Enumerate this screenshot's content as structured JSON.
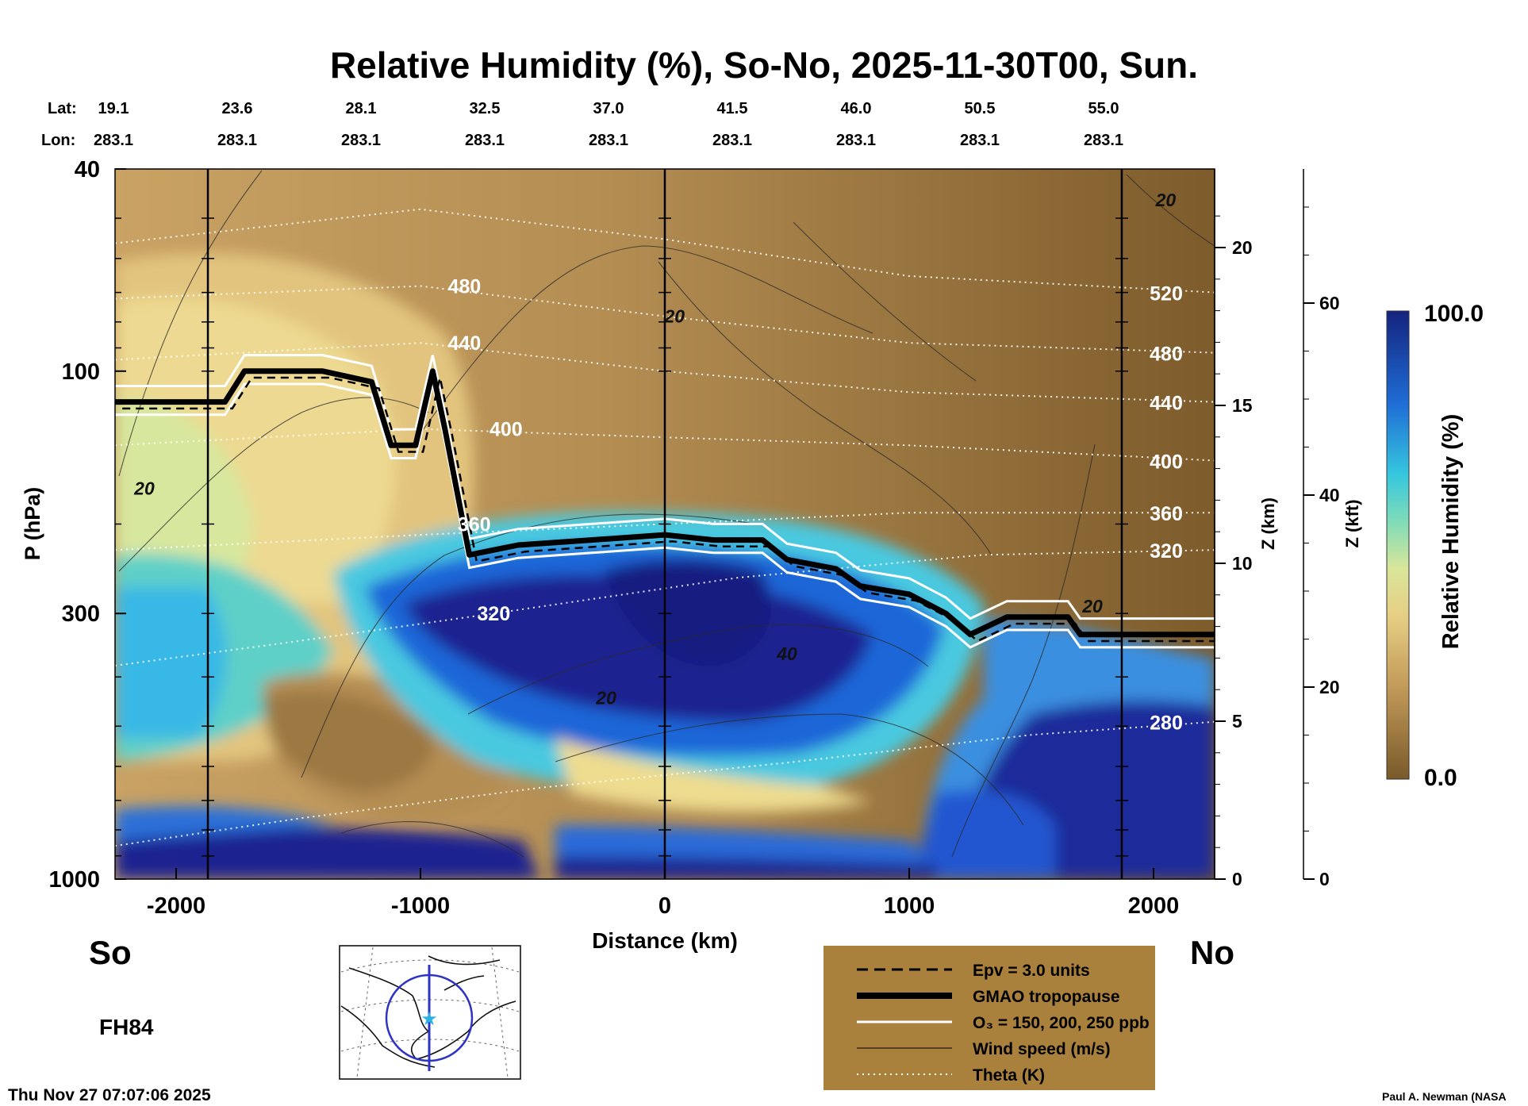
{
  "title": "Relative Humidity (%), So-No, 2025-11-30T00, Sun.",
  "header_rows": {
    "lat_label": "Lat:",
    "lon_label": "Lon:",
    "lat": [
      "19.1",
      "23.6",
      "28.1",
      "32.5",
      "37.0",
      "41.5",
      "46.0",
      "50.5",
      "55.0"
    ],
    "lon": [
      "283.1",
      "283.1",
      "283.1",
      "283.1",
      "283.1",
      "283.1",
      "283.1",
      "283.1",
      "283.1"
    ]
  },
  "left_end": "So",
  "right_end": "No",
  "forecast_hour": "FH84",
  "timestamp": "Thu Nov 27 07:07:06 2025",
  "credit": "Paul A. Newman (NASA",
  "colors": {
    "brown_dark": "#7a5a2a",
    "brown": "#a9824a",
    "tan": "#d8b873",
    "yellow": "#e8d58a",
    "cyan": "#38c8dc",
    "blue": "#1f5fd6",
    "navy": "#1a1f8c",
    "legend_bg": "#a9803c"
  },
  "chart_data": {
    "type": "heatmap",
    "title": "Relative Humidity (%), So-No, 2025-11-30T00, Sun.",
    "xlabel": "Distance (km)",
    "ylabel": "P (hPa)",
    "xlim": [
      -2250,
      2250
    ],
    "ylim": [
      1000,
      40
    ],
    "yscale": "log",
    "x_ticks": [
      -2000,
      -1000,
      0,
      1000,
      2000
    ],
    "x_tick_labels": [
      "-2000",
      "-1000",
      "0",
      "1000",
      "2000"
    ],
    "y_ticks": [
      40,
      100,
      300,
      1000
    ],
    "y_tick_labels": [
      "40",
      "100",
      "300",
      "1000"
    ],
    "z_km": {
      "label": "Z (km)",
      "ticks": [
        0,
        5,
        10,
        15,
        20
      ],
      "tick_labels": [
        "0",
        "5",
        "10",
        "15",
        "20"
      ]
    },
    "z_kft": {
      "label": "Z (kft)",
      "ticks": [
        0,
        20,
        40,
        60
      ],
      "tick_labels": [
        "0",
        "20",
        "40",
        "60"
      ]
    },
    "colorbar": {
      "label": "Relative Humidity (%)",
      "min": 0.0,
      "max": 100.0,
      "min_label": "0.0",
      "max_label": "100.0"
    },
    "vertical_lines_km": [
      -1870,
      0,
      1870
    ],
    "theta_isentropes": [
      {
        "label": "280",
        "points": [
          [
            -2250,
            860
          ],
          [
            -1500,
            760
          ],
          [
            -500,
            660
          ],
          [
            500,
            590
          ],
          [
            1500,
            520
          ],
          [
            2250,
            490
          ]
        ]
      },
      {
        "label": "320",
        "points": [
          [
            -2250,
            380
          ],
          [
            -1500,
            340
          ],
          [
            -700,
            300
          ],
          [
            300,
            255
          ],
          [
            1300,
            230
          ],
          [
            2250,
            225
          ]
        ]
      },
      {
        "label": "360",
        "points": [
          [
            -2250,
            225
          ],
          [
            -1000,
            210
          ],
          [
            0,
            200
          ],
          [
            1000,
            190
          ],
          [
            2250,
            190
          ]
        ]
      },
      {
        "label": "400",
        "points": [
          [
            -2250,
            140
          ],
          [
            -1000,
            130
          ],
          [
            0,
            135
          ],
          [
            1000,
            140
          ],
          [
            2250,
            150
          ]
        ]
      },
      {
        "label": "440",
        "points": [
          [
            -2250,
            95
          ],
          [
            -1000,
            88
          ],
          [
            0,
            100
          ],
          [
            1000,
            110
          ],
          [
            2250,
            115
          ]
        ]
      },
      {
        "label": "480",
        "points": [
          [
            -2250,
            72
          ],
          [
            -1000,
            68
          ],
          [
            0,
            78
          ],
          [
            1000,
            88
          ],
          [
            2250,
            92
          ]
        ]
      },
      {
        "label": "520",
        "points": [
          [
            -2250,
            56
          ],
          [
            -1000,
            48
          ],
          [
            0,
            55
          ],
          [
            1000,
            65
          ],
          [
            2250,
            70
          ]
        ]
      }
    ],
    "wind_speed_labels": [
      {
        "label": "20",
        "x": -2130,
        "p": 170
      },
      {
        "label": "20",
        "x": 40,
        "p": 78
      },
      {
        "label": "20",
        "x": 2050,
        "p": 46
      },
      {
        "label": "20",
        "x": -240,
        "p": 440
      },
      {
        "label": "40",
        "x": 500,
        "p": 360
      },
      {
        "label": "20",
        "x": 1750,
        "p": 290
      }
    ],
    "gmao_tropopause": [
      [
        -2250,
        115
      ],
      [
        -1800,
        115
      ],
      [
        -1720,
        100
      ],
      [
        -1400,
        100
      ],
      [
        -1200,
        105
      ],
      [
        -1120,
        140
      ],
      [
        -1020,
        140
      ],
      [
        -950,
        100
      ],
      [
        -900,
        130
      ],
      [
        -800,
        230
      ],
      [
        -600,
        220
      ],
      [
        -300,
        215
      ],
      [
        0,
        210
      ],
      [
        200,
        215
      ],
      [
        400,
        215
      ],
      [
        500,
        235
      ],
      [
        700,
        245
      ],
      [
        800,
        265
      ],
      [
        1000,
        275
      ],
      [
        1150,
        300
      ],
      [
        1250,
        330
      ],
      [
        1400,
        305
      ],
      [
        1650,
        305
      ],
      [
        1700,
        330
      ],
      [
        2250,
        330
      ]
    ],
    "legend": [
      {
        "key": "epv",
        "label": "Epv = 3.0 units",
        "style": "dashed-black"
      },
      {
        "key": "trop",
        "label": "GMAO tropopause",
        "style": "thick-black"
      },
      {
        "key": "o3",
        "label": "O₃ = 150, 200, 250 ppb",
        "style": "white"
      },
      {
        "key": "wind",
        "label": "Wind speed (m/s)",
        "style": "thin-black"
      },
      {
        "key": "theta",
        "label": "Theta (K)",
        "style": "dotted-white"
      }
    ]
  }
}
